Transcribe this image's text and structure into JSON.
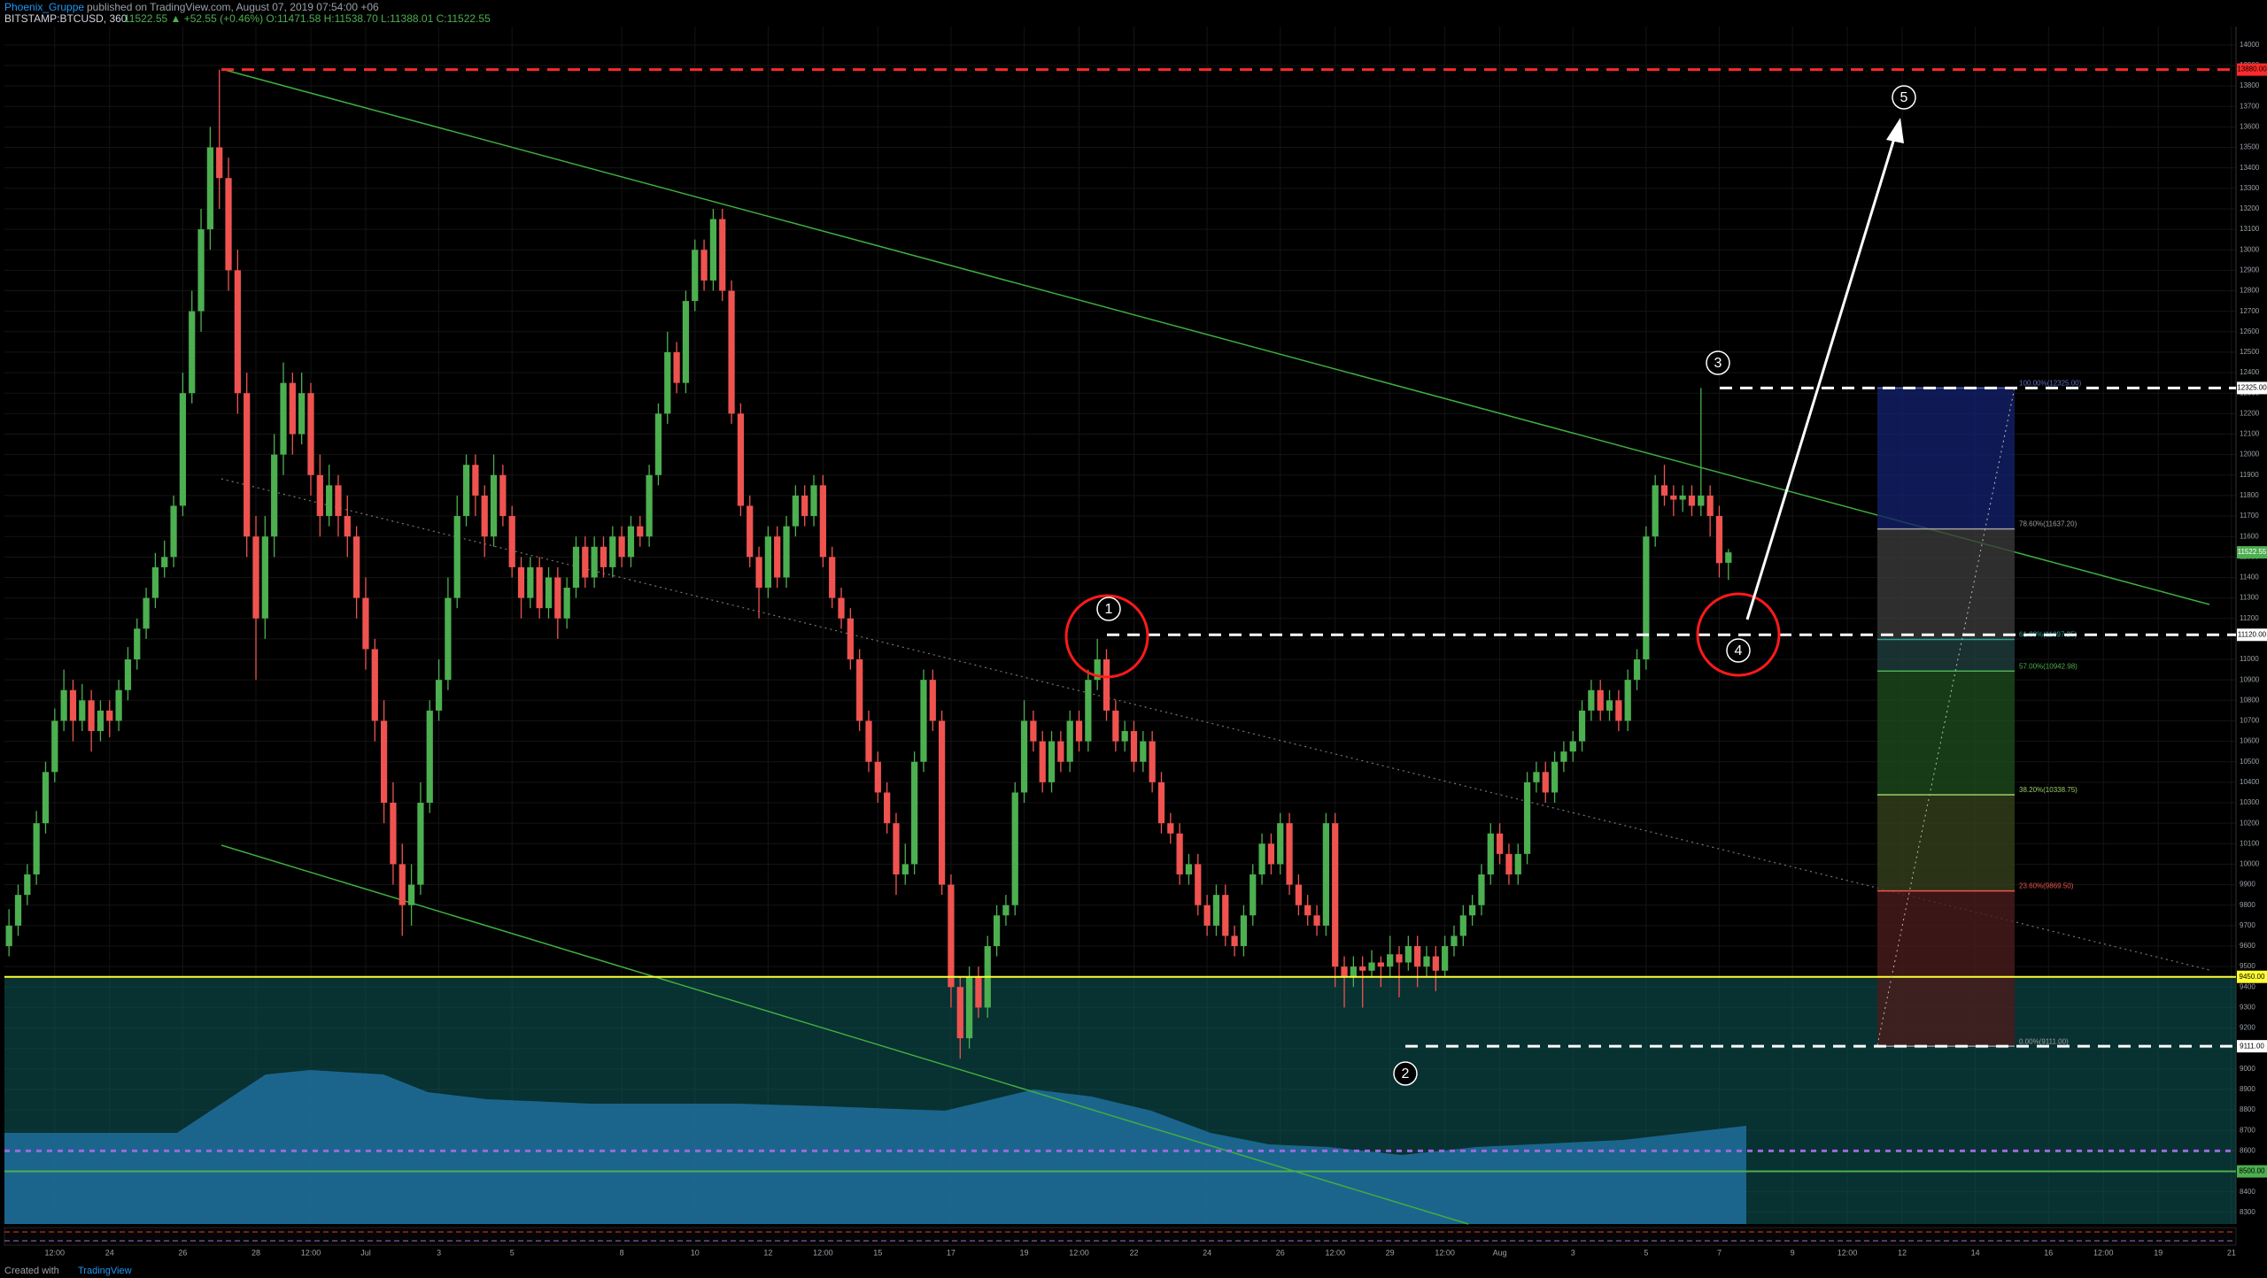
{
  "header": {
    "author": "Phoenix_Gruppe",
    "published": "published on TradingView.com, August 07, 2019 07:54:00 +06",
    "symbol": "BITSTAMP:BTCUSD, 360",
    "quote": "11522.55 ▲ +52.55 (+0.46%) O:11471.58 H:11538.70 L:11388.01 C:11522.55"
  },
  "footer": {
    "prefix": "Created with",
    "brand": "TradingView"
  },
  "chart_data": {
    "type": "candlestick",
    "up_color": "#4caf50",
    "down_color": "#ef5350",
    "grid": true,
    "xlim": [
      -0.5,
      243.5
    ],
    "ylim": [
      8243,
      14090
    ],
    "xticks": [
      {
        "value": 5,
        "label": "12:00"
      },
      {
        "value": 11,
        "label": "24"
      },
      {
        "value": 19,
        "label": "26"
      },
      {
        "value": 27,
        "label": "28"
      },
      {
        "value": 33,
        "label": "12:00"
      },
      {
        "value": 39,
        "label": "Jul"
      },
      {
        "value": 47,
        "label": "3"
      },
      {
        "value": 55,
        "label": "5"
      },
      {
        "value": 67,
        "label": "8"
      },
      {
        "value": 75,
        "label": "10"
      },
      {
        "value": 83,
        "label": "12"
      },
      {
        "value": 89,
        "label": "12:00"
      },
      {
        "value": 95,
        "label": "15"
      },
      {
        "value": 103,
        "label": "17"
      },
      {
        "value": 111,
        "label": "19"
      },
      {
        "value": 117,
        "label": "12:00"
      },
      {
        "value": 123,
        "label": "22"
      },
      {
        "value": 131,
        "label": "24"
      },
      {
        "value": 139,
        "label": "26"
      },
      {
        "value": 145,
        "label": "12:00"
      },
      {
        "value": 151,
        "label": "29"
      },
      {
        "value": 157,
        "label": "12:00"
      },
      {
        "value": 163,
        "label": "Aug"
      },
      {
        "value": 171,
        "label": "3"
      },
      {
        "value": 179,
        "label": "5"
      },
      {
        "value": 187,
        "label": "7"
      },
      {
        "value": 195,
        "label": "9"
      },
      {
        "value": 201,
        "label": "12:00"
      },
      {
        "value": 207,
        "label": "12"
      },
      {
        "value": 215,
        "label": "14"
      },
      {
        "value": 223,
        "label": "16"
      },
      {
        "value": 229,
        "label": "12:00"
      },
      {
        "value": 235,
        "label": "19"
      },
      {
        "value": 243,
        "label": "21"
      }
    ],
    "yticks": [
      8300,
      8400,
      8500,
      8600,
      8700,
      8800,
      8900,
      9000,
      9100,
      9200,
      9300,
      9400,
      9500,
      9600,
      9700,
      9800,
      9900,
      10000,
      10100,
      10200,
      10300,
      10400,
      10500,
      10600,
      10700,
      10800,
      10900,
      11000,
      11100,
      11200,
      11300,
      11400,
      11500,
      11600,
      11700,
      11800,
      11900,
      12000,
      12100,
      12200,
      12300,
      12400,
      12500,
      12600,
      12700,
      12800,
      12900,
      13000,
      13100,
      13200,
      13300,
      13400,
      13500,
      13600,
      13700,
      13800,
      13900,
      14000
    ],
    "ohlc": [
      [
        9600,
        9780,
        9550,
        9700
      ],
      [
        9700,
        9900,
        9650,
        9850
      ],
      [
        9850,
        10000,
        9800,
        9950
      ],
      [
        9950,
        10260,
        9900,
        10200
      ],
      [
        10200,
        10500,
        10150,
        10450
      ],
      [
        10450,
        10760,
        10400,
        10700
      ],
      [
        10700,
        10950,
        10650,
        10850
      ],
      [
        10850,
        10900,
        10600,
        10700
      ],
      [
        10700,
        10880,
        10650,
        10800
      ],
      [
        10800,
        10850,
        10550,
        10650
      ],
      [
        10650,
        10800,
        10600,
        10750
      ],
      [
        10750,
        10800,
        10620,
        10700
      ],
      [
        10700,
        10900,
        10650,
        10850
      ],
      [
        10850,
        11060,
        10800,
        11000
      ],
      [
        11000,
        11200,
        10950,
        11150
      ],
      [
        11150,
        11350,
        11100,
        11300
      ],
      [
        11300,
        11520,
        11250,
        11450
      ],
      [
        11450,
        11580,
        11400,
        11500
      ],
      [
        11500,
        11800,
        11450,
        11750
      ],
      [
        11750,
        12400,
        11700,
        12300
      ],
      [
        12300,
        12800,
        12250,
        12700
      ],
      [
        12700,
        13200,
        12600,
        13100
      ],
      [
        13100,
        13600,
        13000,
        13500
      ],
      [
        13500,
        13880,
        13200,
        13350
      ],
      [
        13350,
        13450,
        12800,
        12900
      ],
      [
        12900,
        13000,
        12200,
        12300
      ],
      [
        12300,
        12400,
        11500,
        11600
      ],
      [
        11600,
        11700,
        10900,
        11200
      ],
      [
        11200,
        11700,
        11100,
        11600
      ],
      [
        11600,
        12100,
        11500,
        12000
      ],
      [
        12000,
        12450,
        11900,
        12350
      ],
      [
        12350,
        12400,
        12000,
        12100
      ],
      [
        12100,
        12400,
        12050,
        12300
      ],
      [
        12300,
        12350,
        11800,
        11900
      ],
      [
        11900,
        12000,
        11600,
        11700
      ],
      [
        11700,
        11950,
        11650,
        11850
      ],
      [
        11850,
        11900,
        11600,
        11700
      ],
      [
        11700,
        11800,
        11500,
        11600
      ],
      [
        11600,
        11650,
        11200,
        11300
      ],
      [
        11300,
        11400,
        10950,
        11050
      ],
      [
        11050,
        11100,
        10600,
        10700
      ],
      [
        10700,
        10800,
        10200,
        10300
      ],
      [
        10300,
        10400,
        9900,
        10000
      ],
      [
        10000,
        10100,
        9650,
        9800
      ],
      [
        9800,
        10000,
        9700,
        9900
      ],
      [
        9900,
        10400,
        9850,
        10300
      ],
      [
        10300,
        10800,
        10250,
        10750
      ],
      [
        10750,
        11000,
        10700,
        10900
      ],
      [
        10900,
        11400,
        10850,
        11300
      ],
      [
        11300,
        11800,
        11250,
        11700
      ],
      [
        11700,
        12000,
        11650,
        11950
      ],
      [
        11950,
        12000,
        11700,
        11800
      ],
      [
        11800,
        11850,
        11500,
        11600
      ],
      [
        11600,
        12000,
        11550,
        11900
      ],
      [
        11900,
        11950,
        11650,
        11700
      ],
      [
        11700,
        11750,
        11400,
        11450
      ],
      [
        11450,
        11500,
        11200,
        11300
      ],
      [
        11300,
        11500,
        11250,
        11450
      ],
      [
        11450,
        11500,
        11200,
        11250
      ],
      [
        11250,
        11450,
        11200,
        11400
      ],
      [
        11400,
        11450,
        11100,
        11200
      ],
      [
        11200,
        11400,
        11150,
        11350
      ],
      [
        11350,
        11600,
        11300,
        11550
      ],
      [
        11550,
        11600,
        11350,
        11400
      ],
      [
        11400,
        11600,
        11350,
        11550
      ],
      [
        11550,
        11600,
        11400,
        11450
      ],
      [
        11450,
        11650,
        11400,
        11600
      ],
      [
        11600,
        11650,
        11450,
        11500
      ],
      [
        11500,
        11700,
        11450,
        11650
      ],
      [
        11650,
        11700,
        11550,
        11600
      ],
      [
        11600,
        11950,
        11550,
        11900
      ],
      [
        11900,
        12250,
        11850,
        12200
      ],
      [
        12200,
        12600,
        12150,
        12500
      ],
      [
        12500,
        12550,
        12300,
        12350
      ],
      [
        12350,
        12800,
        12300,
        12750
      ],
      [
        12750,
        13050,
        12700,
        13000
      ],
      [
        13000,
        13050,
        12800,
        12850
      ],
      [
        12850,
        13200,
        12800,
        13150
      ],
      [
        13150,
        13200,
        12750,
        12800
      ],
      [
        12800,
        12850,
        12150,
        12200
      ],
      [
        12200,
        12250,
        11700,
        11750
      ],
      [
        11750,
        11800,
        11450,
        11500
      ],
      [
        11500,
        11550,
        11200,
        11350
      ],
      [
        11350,
        11650,
        11300,
        11600
      ],
      [
        11600,
        11650,
        11350,
        11400
      ],
      [
        11400,
        11700,
        11350,
        11650
      ],
      [
        11650,
        11850,
        11600,
        11800
      ],
      [
        11800,
        11850,
        11650,
        11700
      ],
      [
        11700,
        11900,
        11650,
        11850
      ],
      [
        11850,
        11900,
        11450,
        11500
      ],
      [
        11500,
        11550,
        11250,
        11300
      ],
      [
        11300,
        11350,
        11150,
        11200
      ],
      [
        11200,
        11250,
        10950,
        11000
      ],
      [
        11000,
        11050,
        10650,
        10700
      ],
      [
        10700,
        10750,
        10450,
        10500
      ],
      [
        10500,
        10550,
        10300,
        10350
      ],
      [
        10350,
        10400,
        10150,
        10200
      ],
      [
        10200,
        10250,
        9850,
        9950
      ],
      [
        9950,
        10100,
        9900,
        10000
      ],
      [
        10000,
        10550,
        9950,
        10500
      ],
      [
        10500,
        10950,
        10450,
        10900
      ],
      [
        10900,
        10950,
        10650,
        10700
      ],
      [
        10700,
        10750,
        9850,
        9900
      ],
      [
        9900,
        9950,
        9300,
        9400
      ],
      [
        9400,
        9450,
        9050,
        9150
      ],
      [
        9150,
        9500,
        9100,
        9450
      ],
      [
        9450,
        9500,
        9250,
        9300
      ],
      [
        9300,
        9650,
        9250,
        9600
      ],
      [
        9600,
        9800,
        9550,
        9750
      ],
      [
        9750,
        9850,
        9700,
        9800
      ],
      [
        9800,
        10400,
        9750,
        10350
      ],
      [
        10350,
        10800,
        10300,
        10700
      ],
      [
        10700,
        10750,
        10550,
        10600
      ],
      [
        10600,
        10650,
        10350,
        10400
      ],
      [
        10400,
        10650,
        10350,
        10600
      ],
      [
        10600,
        10650,
        10450,
        10500
      ],
      [
        10500,
        10750,
        10450,
        10700
      ],
      [
        10700,
        10750,
        10550,
        10600
      ],
      [
        10600,
        10950,
        10550,
        10900
      ],
      [
        10900,
        11100,
        10850,
        11000
      ],
      [
        11000,
        11050,
        10700,
        10750
      ],
      [
        10750,
        10800,
        10550,
        10600
      ],
      [
        10600,
        10700,
        10550,
        10650
      ],
      [
        10650,
        10700,
        10450,
        10500
      ],
      [
        10500,
        10650,
        10450,
        10600
      ],
      [
        10600,
        10650,
        10350,
        10400
      ],
      [
        10400,
        10450,
        10150,
        10200
      ],
      [
        10200,
        10250,
        10100,
        10150
      ],
      [
        10150,
        10200,
        9900,
        9950
      ],
      [
        9950,
        10050,
        9900,
        10000
      ],
      [
        10000,
        10050,
        9750,
        9800
      ],
      [
        9800,
        9850,
        9650,
        9700
      ],
      [
        9700,
        9900,
        9650,
        9850
      ],
      [
        9850,
        9900,
        9600,
        9650
      ],
      [
        9650,
        9700,
        9550,
        9600
      ],
      [
        9600,
        9800,
        9550,
        9750
      ],
      [
        9750,
        10000,
        9700,
        9950
      ],
      [
        9950,
        10150,
        9900,
        10100
      ],
      [
        10100,
        10150,
        9950,
        10000
      ],
      [
        10000,
        10250,
        9950,
        10200
      ],
      [
        10200,
        10250,
        9850,
        9900
      ],
      [
        9900,
        9950,
        9750,
        9800
      ],
      [
        9800,
        9850,
        9700,
        9750
      ],
      [
        9750,
        9800,
        9650,
        9700
      ],
      [
        9700,
        10250,
        9650,
        10200
      ],
      [
        10200,
        10250,
        9400,
        9500
      ],
      [
        9500,
        9550,
        9300,
        9450
      ],
      [
        9450,
        9550,
        9400,
        9500
      ],
      [
        9500,
        9550,
        9300,
        9480
      ],
      [
        9480,
        9580,
        9450,
        9520
      ],
      [
        9520,
        9550,
        9400,
        9500
      ],
      [
        9500,
        9650,
        9450,
        9560
      ],
      [
        9560,
        9600,
        9350,
        9520
      ],
      [
        9520,
        9650,
        9480,
        9600
      ],
      [
        9600,
        9650,
        9400,
        9500
      ],
      [
        9500,
        9600,
        9450,
        9550
      ],
      [
        9550,
        9600,
        9380,
        9480
      ],
      [
        9480,
        9650,
        9450,
        9600
      ],
      [
        9600,
        9700,
        9550,
        9650
      ],
      [
        9650,
        9800,
        9600,
        9750
      ],
      [
        9750,
        9850,
        9700,
        9800
      ],
      [
        9800,
        10000,
        9750,
        9950
      ],
      [
        9950,
        10200,
        9900,
        10150
      ],
      [
        10150,
        10200,
        10000,
        10050
      ],
      [
        10050,
        10100,
        9900,
        9950
      ],
      [
        9950,
        10100,
        9900,
        10050
      ],
      [
        10050,
        10450,
        10000,
        10400
      ],
      [
        10400,
        10500,
        10350,
        10450
      ],
      [
        10450,
        10500,
        10300,
        10350
      ],
      [
        10350,
        10550,
        10300,
        10500
      ],
      [
        10500,
        10600,
        10450,
        10550
      ],
      [
        10550,
        10650,
        10500,
        10600
      ],
      [
        10600,
        10800,
        10550,
        10750
      ],
      [
        10750,
        10900,
        10700,
        10850
      ],
      [
        10850,
        10900,
        10700,
        10750
      ],
      [
        10750,
        10850,
        10700,
        10800
      ],
      [
        10800,
        10850,
        10650,
        10700
      ],
      [
        10700,
        10950,
        10650,
        10900
      ],
      [
        10900,
        11050,
        10850,
        11000
      ],
      [
        11000,
        11650,
        10950,
        11600
      ],
      [
        11600,
        11900,
        11550,
        11850
      ],
      [
        11850,
        11950,
        11750,
        11800
      ],
      [
        11800,
        11850,
        11700,
        11780
      ],
      [
        11780,
        11850,
        11720,
        11800
      ],
      [
        11800,
        11850,
        11700,
        11750
      ],
      [
        11750,
        12325,
        11700,
        11800
      ],
      [
        11800,
        11850,
        11600,
        11700
      ],
      [
        11700,
        11750,
        11400,
        11470
      ],
      [
        11471.58,
        11538.7,
        11388.01,
        11522.55
      ]
    ],
    "levels": [
      {
        "value": 13880,
        "label": "13880.00",
        "color": "#ff2a2a",
        "style": "dashed"
      },
      {
        "value": 12325,
        "label": "12325.00",
        "color": "#ffffff",
        "style": "dashed"
      },
      {
        "value": 11120,
        "label": "11120.00",
        "color": "#ffffff",
        "style": "dashed"
      },
      {
        "value": 9450,
        "label": "9450.00",
        "color": "#ffff33",
        "style": "solid"
      },
      {
        "value": 9111,
        "label": "9111.00",
        "color": "#ffffff",
        "style": "dashed"
      },
      {
        "value": 8600,
        "color": "#9c6ade",
        "style": "dotted"
      },
      {
        "value": 8500,
        "label": "8500.00",
        "color": "#4caf50",
        "style": "solid"
      }
    ],
    "price_label": {
      "value": 11522.55,
      "label": "11522.55",
      "color": "#4caf50"
    },
    "zone_color": "#0f5a5a",
    "fib": {
      "levels": [
        {
          "value": 12325,
          "label": "100.00%(12325.00)"
        },
        {
          "value": 11637.2,
          "label": "78.60%(11637.20)"
        },
        {
          "value": 11097.25,
          "label": "61.80%(11097.25)"
        },
        {
          "value": 10942.98,
          "label": "57.00%(10942.98)"
        },
        {
          "value": 10338.75,
          "label": "38.20%(10338.75)"
        },
        {
          "value": 9869.5,
          "label": "23.60%(9869.50)"
        },
        {
          "value": 9111,
          "label": "0.00%(9111.00)"
        }
      ],
      "line_colors": [
        "#5c6bc0",
        "#9e9e9e",
        "#26a69a",
        "#4caf50",
        "#9ccc65",
        "#ef5350",
        "#9e9e9e"
      ],
      "zone_colors": [
        "#13206a",
        "#3a3a3a",
        "#1f3d3d",
        "#1b4a1b",
        "#34401a",
        "#4a1c1c"
      ]
    },
    "annotations": [
      "1",
      "2",
      "3",
      "4",
      "5"
    ]
  }
}
